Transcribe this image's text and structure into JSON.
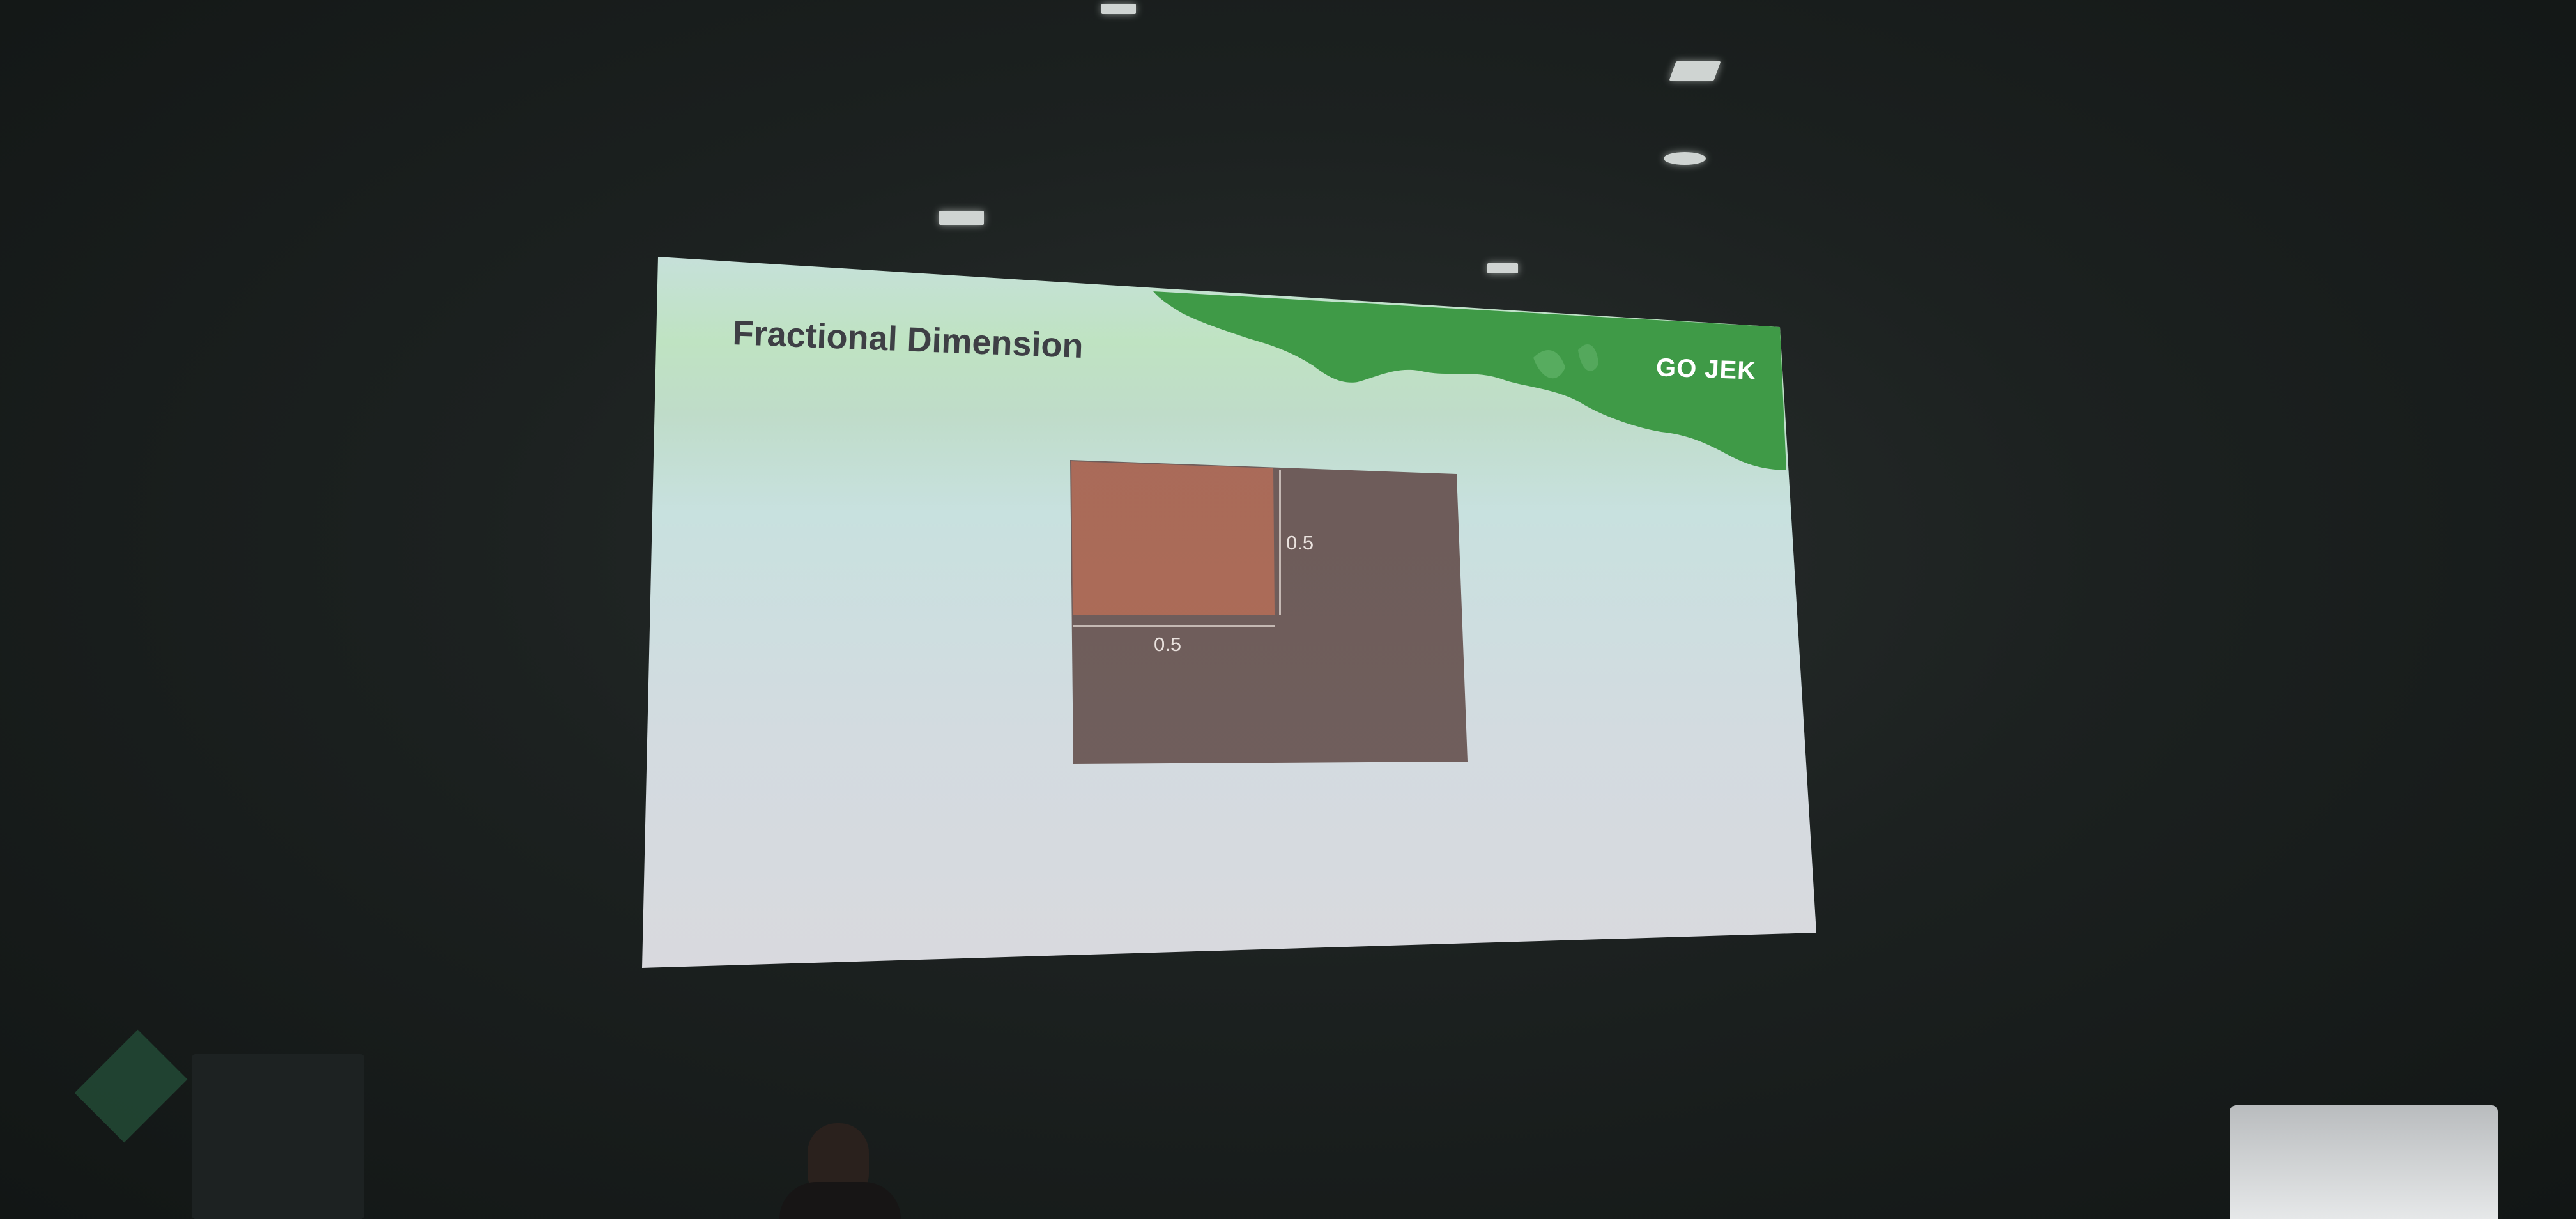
{
  "slide": {
    "title": "Fractional Dimension",
    "logo": "GO JEK"
  },
  "diagram": {
    "height_fraction_label": "0.5",
    "width_fraction_label": "0.5"
  },
  "colors": {
    "outer_box": "#6e5c5a",
    "inner_box": "#ad6b56",
    "brand_green": "#3f9a47"
  }
}
